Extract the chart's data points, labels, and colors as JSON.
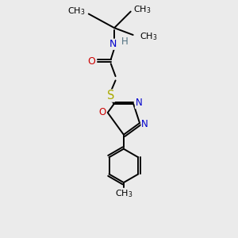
{
  "bg_color": "#ebebeb",
  "colors": {
    "C": "#000000",
    "N": "#0000cc",
    "O": "#cc0000",
    "S": "#aaaa00",
    "H": "#507080",
    "bond": "#000000"
  },
  "lw": 1.4,
  "fs": 8.5
}
